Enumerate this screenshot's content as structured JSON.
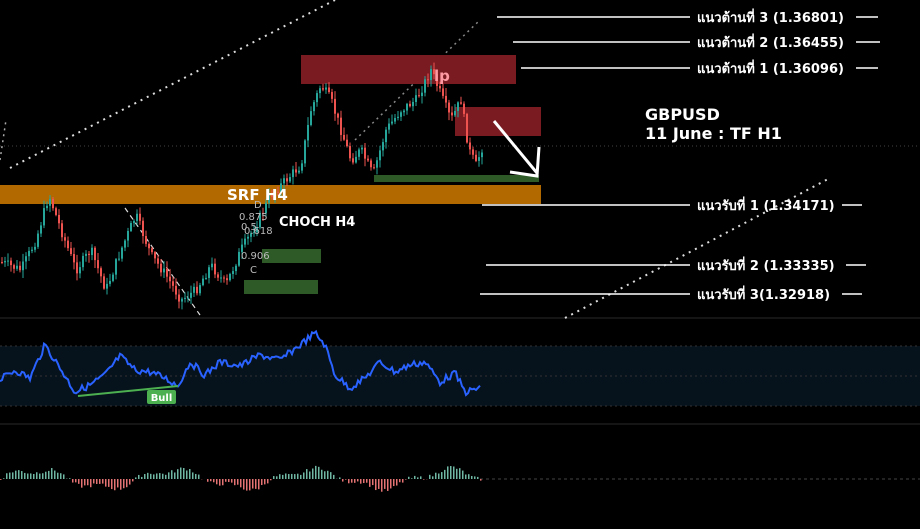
{
  "chart_data": {
    "type": "candlestick",
    "symbol": "GBPUSD",
    "subtitle": "11 June : TF H1",
    "resistance": [
      {
        "label": "แนวต้านที่ 3 (1.36801)",
        "price": 1.36801
      },
      {
        "label": "แนวต้านที่ 2 (1.36455)",
        "price": 1.36455
      },
      {
        "label": "แนวต้านที่ 1 (1.36096)",
        "price": 1.36096
      }
    ],
    "support": [
      {
        "label": "แนวรับที่ 1 (1.34171)",
        "price": 1.34171
      },
      {
        "label": "แนวรับที่ 2 (1.33335)",
        "price": 1.33335
      },
      {
        "label": "แนวรับที่ 3(1.32918)",
        "price": 1.32918
      }
    ],
    "annotations": {
      "srf": "SRF H4",
      "choch": "CHOCH H4",
      "lp": "lp",
      "bull": "Bull",
      "fib": [
        "0.875",
        "0.5",
        "0.618",
        "0.906"
      ],
      "points": [
        "D",
        "C"
      ]
    },
    "colors": {
      "supply_zone": "#7a1b22",
      "demand_zone": "#2d5a27",
      "srf_band": "#b26a00",
      "bull_candle": "#26a69a",
      "bear_candle": "#ef5350",
      "rsi_line": "#2962ff"
    }
  }
}
